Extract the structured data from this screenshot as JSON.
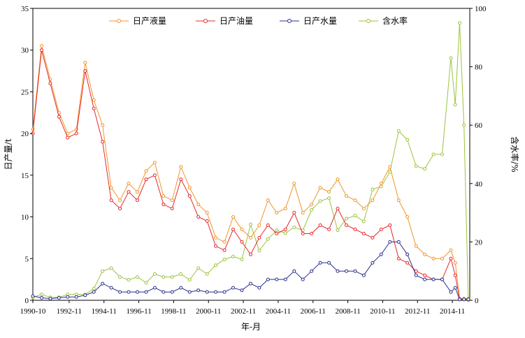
{
  "chart_data": {
    "type": "line",
    "xlabel": "年-月",
    "ylabel_left": "日产量/t",
    "ylabel_right": "含水率/%",
    "x_tick_labels": [
      "1990-10",
      "1992-11",
      "1994-11",
      "1996-11",
      "1998-11",
      "2000-11",
      "2002-11",
      "2004-11",
      "2006-11",
      "2008-11",
      "2010-11",
      "2012-11",
      "2014-11"
    ],
    "ylim_left": [
      0,
      35
    ],
    "ylim_right": [
      0,
      100
    ],
    "y_ticks_left": [
      "0",
      "5",
      "10",
      "15",
      "20",
      "25",
      "30",
      "35"
    ],
    "y_ticks_right": [
      "0",
      "20",
      "40",
      "60",
      "80",
      "100"
    ],
    "legend_position": "top",
    "grid": false,
    "x": [
      "1990-10",
      "1991-04",
      "1991-10",
      "1992-04",
      "1992-10",
      "1993-04",
      "1993-10",
      "1994-04",
      "1994-10",
      "1995-04",
      "1995-10",
      "1996-04",
      "1996-10",
      "1997-04",
      "1997-10",
      "1998-04",
      "1998-10",
      "1999-04",
      "1999-10",
      "2000-04",
      "2000-10",
      "2001-04",
      "2001-10",
      "2002-04",
      "2002-10",
      "2003-04",
      "2003-10",
      "2004-04",
      "2004-10",
      "2005-04",
      "2005-10",
      "2006-04",
      "2006-10",
      "2007-04",
      "2007-10",
      "2008-04",
      "2008-10",
      "2009-04",
      "2009-10",
      "2010-04",
      "2010-10",
      "2011-04",
      "2011-10",
      "2012-04",
      "2012-10",
      "2013-04",
      "2013-10",
      "2014-04",
      "2014-10",
      "2015-01",
      "2015-04",
      "2015-07",
      "2015-10"
    ],
    "series": [
      {
        "name": "日产液量",
        "axis": "left",
        "color": "#f0952a",
        "values": [
          20.5,
          30.5,
          26.5,
          22.5,
          20.0,
          20.5,
          28.5,
          24.0,
          21.0,
          13.5,
          12.0,
          14.0,
          13.0,
          15.5,
          16.5,
          12.5,
          12.0,
          16.0,
          13.5,
          11.5,
          10.5,
          7.5,
          7.0,
          10.0,
          8.5,
          7.5,
          9.0,
          12.0,
          10.5,
          11.0,
          14.0,
          10.5,
          11.5,
          13.5,
          13.0,
          14.5,
          12.5,
          12.0,
          11.0,
          12.0,
          14.0,
          16.0,
          12.0,
          10.0,
          6.5,
          5.5,
          5.0,
          5.0,
          6.0,
          4.5,
          0.2,
          0.2,
          0.2
        ]
      },
      {
        "name": "日产油量",
        "axis": "left",
        "color": "#e8272a",
        "values": [
          20.0,
          30.0,
          26.0,
          22.0,
          19.5,
          20.0,
          27.5,
          23.0,
          19.0,
          12.0,
          11.0,
          13.0,
          12.0,
          14.5,
          15.0,
          11.5,
          11.0,
          14.5,
          12.5,
          10.0,
          9.5,
          6.5,
          6.0,
          8.5,
          7.0,
          5.5,
          7.5,
          9.0,
          8.0,
          8.5,
          10.5,
          8.0,
          8.0,
          9.0,
          8.5,
          11.0,
          9.0,
          8.5,
          8.0,
          7.5,
          8.5,
          9.0,
          5.0,
          4.5,
          3.5,
          3.0,
          2.5,
          2.5,
          5.0,
          3.0,
          0.1,
          0.1,
          0.1
        ]
      },
      {
        "name": "日产水量",
        "axis": "left",
        "color": "#2b2f8c",
        "values": [
          0.5,
          0.3,
          0.2,
          0.3,
          0.4,
          0.4,
          0.6,
          1.0,
          2.0,
          1.5,
          1.0,
          1.0,
          1.0,
          1.0,
          1.5,
          1.0,
          1.0,
          1.5,
          1.0,
          1.2,
          1.0,
          1.0,
          1.0,
          1.5,
          1.2,
          2.0,
          1.5,
          2.5,
          2.5,
          2.5,
          3.5,
          2.5,
          3.5,
          4.5,
          4.5,
          3.5,
          3.5,
          3.5,
          3.0,
          4.5,
          5.5,
          7.0,
          7.0,
          5.5,
          3.0,
          2.5,
          2.5,
          2.5,
          1.0,
          1.5,
          0.1,
          0.1,
          0.1
        ]
      },
      {
        "name": "含水率",
        "axis": "right",
        "color": "#9bc53d",
        "values": [
          1,
          2,
          1,
          1,
          2,
          2,
          2,
          4,
          10,
          11,
          8,
          7,
          8,
          6,
          9,
          8,
          8,
          9,
          7,
          11,
          9,
          12,
          14,
          15,
          14,
          26,
          17,
          21,
          24,
          23,
          25,
          24,
          31,
          34,
          35,
          24,
          28,
          29,
          27,
          38,
          39,
          44,
          58,
          55,
          46,
          45,
          50,
          50,
          83,
          67,
          95,
          60,
          0
        ]
      }
    ]
  }
}
